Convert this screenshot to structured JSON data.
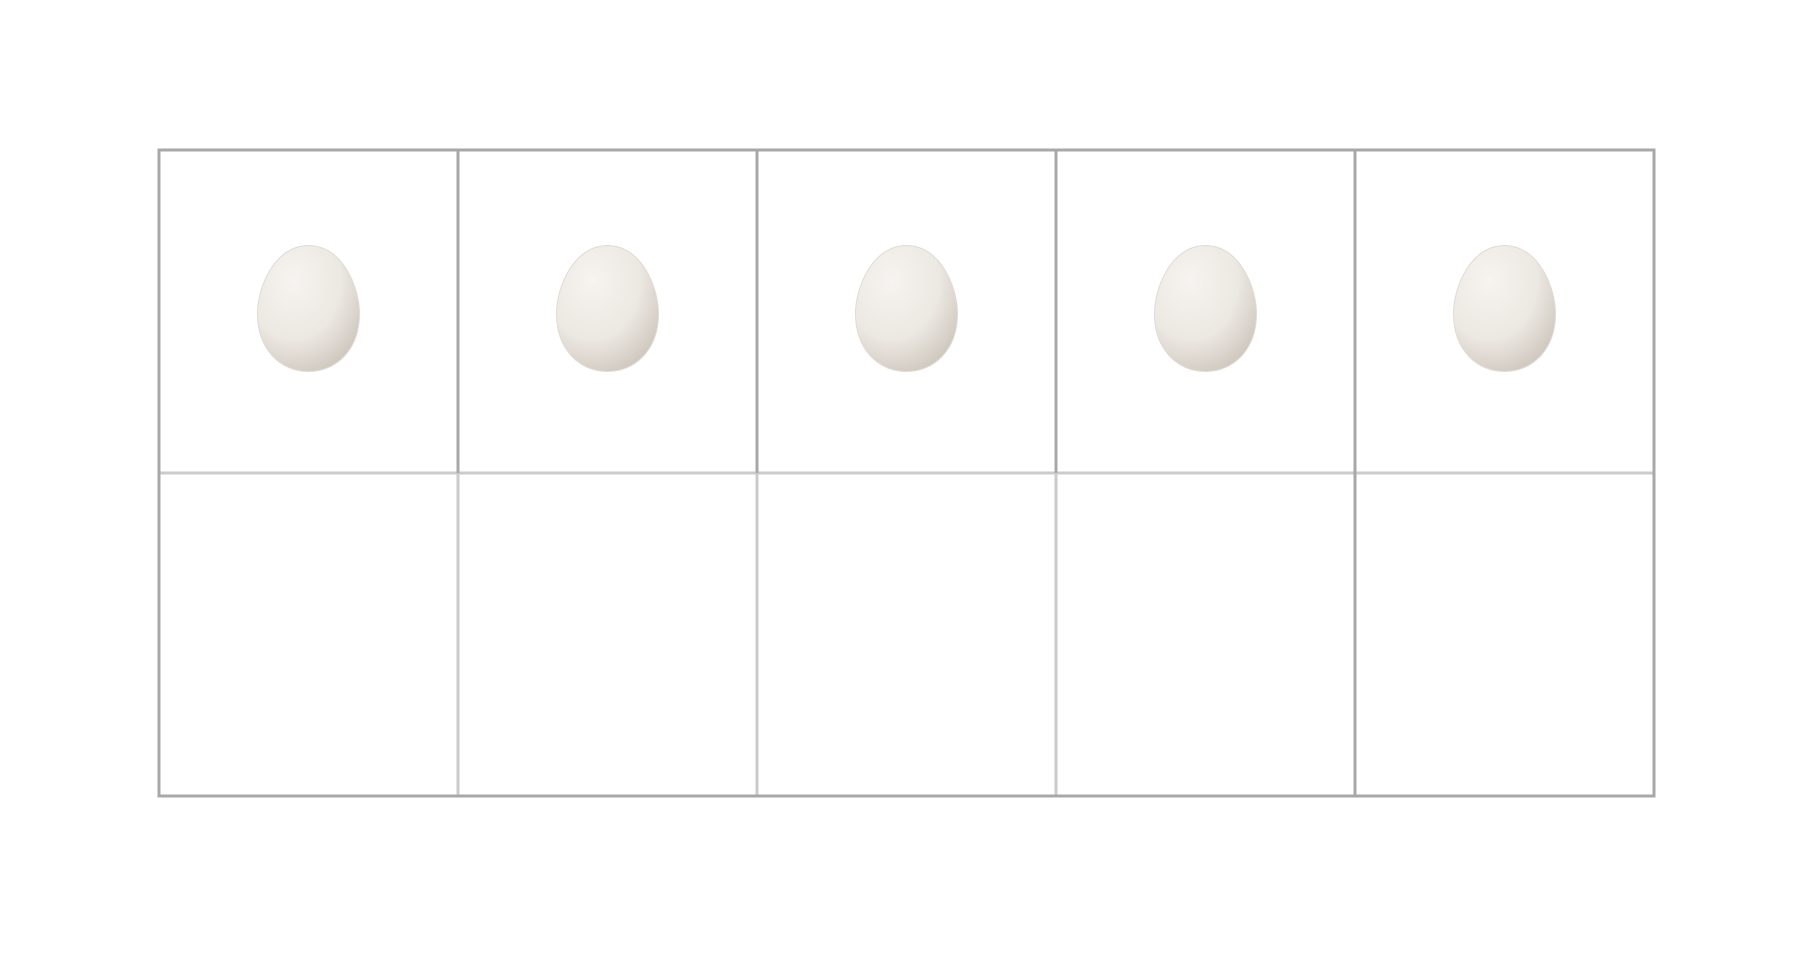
{
  "ten_frame": {
    "rows": 2,
    "columns": 5,
    "filled_count": 5,
    "cells": [
      {
        "row": 1,
        "col": 1,
        "content": "egg"
      },
      {
        "row": 1,
        "col": 2,
        "content": "egg"
      },
      {
        "row": 1,
        "col": 3,
        "content": "egg"
      },
      {
        "row": 1,
        "col": 4,
        "content": "egg"
      },
      {
        "row": 1,
        "col": 5,
        "content": "egg"
      },
      {
        "row": 2,
        "col": 1,
        "content": "empty"
      },
      {
        "row": 2,
        "col": 2,
        "content": "empty"
      },
      {
        "row": 2,
        "col": 3,
        "content": "empty"
      },
      {
        "row": 2,
        "col": 4,
        "content": "empty"
      },
      {
        "row": 2,
        "col": 5,
        "content": "empty"
      }
    ],
    "colors": {
      "outer_border": "#a8a8a8",
      "inner_line": "#cbcbcb",
      "egg_light": "#f6f4f0",
      "egg_mid": "#ece8e2",
      "egg_shadow": "#c8c0b6"
    }
  }
}
